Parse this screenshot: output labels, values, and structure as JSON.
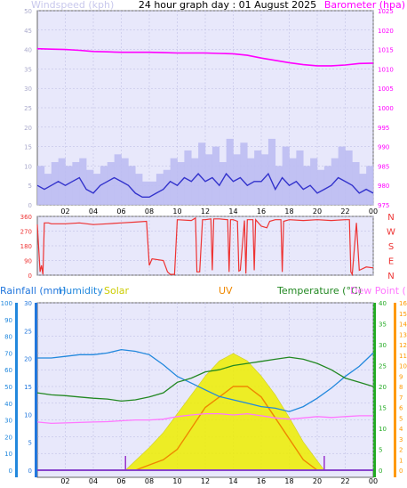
{
  "title": "24 hour graph day : 01 August 2025",
  "colors": {
    "grid": "#b8b8e0",
    "barometer": "#ff00ff",
    "windspeed": "#3333cc",
    "gust": "#bcbcf2",
    "direction": "#ee3333",
    "rain": "#2277dd",
    "humidity": "#2288dd",
    "solar": "#cccc00",
    "uv": "#ee8800",
    "temperature": "#228822",
    "dewpoint": "#ff77ff",
    "green_axis": "#22aa22",
    "orange_axis": "#ff9900"
  },
  "chart_data": [
    {
      "id": "wind-baro",
      "type": "line",
      "left_axis_label": "Windspeed (kph)",
      "right_axis_label": "Barometer (hpa)",
      "x_ticks": [
        "02",
        "04",
        "06",
        "08",
        "10",
        "12",
        "14",
        "16",
        "18",
        "20",
        "22",
        "00"
      ],
      "y_left": {
        "min": 0,
        "max": 50,
        "ticks": [
          "0",
          "5",
          "10",
          "15",
          "20",
          "25",
          "30",
          "35",
          "40",
          "45",
          "50"
        ]
      },
      "y_right": {
        "min": 975,
        "max": 1025,
        "ticks": [
          "975",
          "980",
          "985",
          "990",
          "995",
          "1000",
          "1005",
          "1010",
          "1015",
          "1020",
          "1025"
        ]
      },
      "series": [
        {
          "name": "Barometer",
          "x": [
            0,
            1,
            2,
            3,
            4,
            5,
            6,
            7,
            8,
            9,
            10,
            11,
            12,
            13,
            14,
            15,
            16,
            17,
            18,
            19,
            20,
            21,
            22,
            23,
            24
          ],
          "values": [
            1015.2,
            1015.1,
            1015.0,
            1014.8,
            1014.5,
            1014.4,
            1014.3,
            1014.3,
            1014.3,
            1014.2,
            1014.1,
            1014.1,
            1014.1,
            1014.0,
            1013.9,
            1013.5,
            1012.8,
            1012.2,
            1011.6,
            1011.1,
            1010.8,
            1010.8,
            1011.0,
            1011.4,
            1011.5
          ]
        },
        {
          "name": "Windspeed",
          "x": [
            0,
            0.5,
            1,
            1.5,
            2,
            2.5,
            3,
            3.5,
            4,
            4.5,
            5,
            5.5,
            6,
            6.5,
            7,
            7.5,
            8,
            8.5,
            9,
            9.5,
            10,
            10.5,
            11,
            11.5,
            12,
            12.5,
            13,
            13.5,
            14,
            14.5,
            15,
            15.5,
            16,
            16.5,
            17,
            17.5,
            18,
            18.5,
            19,
            19.5,
            20,
            20.5,
            21,
            21.5,
            22,
            22.5,
            23,
            23.5,
            24
          ],
          "values": [
            5,
            4,
            5,
            6,
            5,
            6,
            7,
            4,
            3,
            5,
            6,
            7,
            6,
            5,
            3,
            2,
            2,
            3,
            4,
            6,
            5,
            7,
            6,
            8,
            6,
            7,
            5,
            8,
            6,
            7,
            5,
            6,
            6,
            8,
            4,
            7,
            5,
            6,
            4,
            5,
            3,
            4,
            5,
            7,
            6,
            5,
            3,
            4,
            3
          ]
        },
        {
          "name": "Gust",
          "x": [
            0,
            0.5,
            1,
            1.5,
            2,
            2.5,
            3,
            3.5,
            4,
            4.5,
            5,
            5.5,
            6,
            6.5,
            7,
            7.5,
            8,
            8.5,
            9,
            9.5,
            10,
            10.5,
            11,
            11.5,
            12,
            12.5,
            13,
            13.5,
            14,
            14.5,
            15,
            15.5,
            16,
            16.5,
            17,
            17.5,
            18,
            18.5,
            19,
            19.5,
            20,
            20.5,
            21,
            21.5,
            22,
            22.5,
            23,
            23.5,
            24
          ],
          "values": [
            10,
            8,
            11,
            12,
            10,
            11,
            12,
            9,
            8,
            10,
            11,
            13,
            12,
            10,
            8,
            6,
            6,
            8,
            9,
            12,
            11,
            14,
            12,
            16,
            13,
            15,
            11,
            17,
            13,
            16,
            12,
            14,
            13,
            17,
            10,
            15,
            12,
            14,
            10,
            12,
            9,
            10,
            12,
            15,
            14,
            11,
            8,
            10,
            9
          ]
        }
      ]
    },
    {
      "id": "direction",
      "type": "line",
      "y_ticks": [
        "0",
        "90",
        "180",
        "270",
        "360"
      ],
      "right_letters": [
        "N",
        "W",
        "S",
        "E",
        "N"
      ],
      "series": [
        {
          "name": "Wind direction",
          "x": [
            0,
            0.2,
            0.3,
            0.4,
            0.5,
            0.8,
            1.0,
            2,
            3,
            4,
            5,
            6,
            7,
            7.8,
            8.0,
            8.2,
            9,
            9.3,
            9.5,
            9.8,
            10,
            11,
            11.3,
            11.4,
            11.6,
            11.8,
            12,
            12.4,
            12.5,
            12.6,
            13,
            13.6,
            13.7,
            13.8,
            14,
            14.3,
            14.4,
            14.5,
            14.8,
            14.9,
            15,
            15.4,
            15.5,
            15.6,
            16,
            16.4,
            16.6,
            17,
            17.4,
            17.5,
            17.6,
            18,
            19,
            20,
            21,
            22,
            22.3,
            22.4,
            22.5,
            22.8,
            23,
            23.5,
            24
          ],
          "values": [
            310,
            20,
            60,
            5,
            320,
            320,
            315,
            315,
            320,
            310,
            315,
            320,
            325,
            330,
            60,
            100,
            90,
            20,
            5,
            5,
            340,
            335,
            350,
            20,
            20,
            340,
            340,
            345,
            30,
            345,
            345,
            340,
            20,
            340,
            340,
            330,
            25,
            30,
            335,
            10,
            340,
            340,
            30,
            340,
            300,
            290,
            330,
            340,
            340,
            20,
            330,
            340,
            335,
            340,
            335,
            340,
            340,
            20,
            5,
            320,
            30,
            50,
            45
          ]
        }
      ]
    },
    {
      "id": "rain-etc",
      "type": "line",
      "legend": [
        "Rainfall (mm)",
        "Humidity",
        "Solar",
        "UV",
        "Temperature (°C)",
        "Dew Point (°C)"
      ],
      "x_ticks": [
        "02",
        "04",
        "06",
        "08",
        "10",
        "12",
        "14",
        "16",
        "18",
        "20",
        "22",
        "00"
      ],
      "humidity_ticks": [
        "0",
        "10",
        "20",
        "30",
        "40",
        "50",
        "60",
        "70",
        "80",
        "90",
        "100"
      ],
      "rain_ticks": [
        "0",
        "5",
        "10",
        "15",
        "20",
        "25",
        "30"
      ],
      "temp_ticks": [
        "0",
        "5",
        "10",
        "15",
        "20",
        "25",
        "30",
        "35",
        "40"
      ],
      "uv_ticks": [
        "0",
        "1",
        "2",
        "3",
        "4",
        "5",
        "6",
        "7",
        "8",
        "9",
        "10",
        "11",
        "12",
        "13",
        "14",
        "15",
        "16"
      ],
      "series": [
        {
          "name": "Temperature",
          "x": [
            0,
            1,
            2,
            3,
            4,
            5,
            6,
            7,
            8,
            9,
            10,
            11,
            12,
            13,
            14,
            15,
            16,
            17,
            18,
            19,
            20,
            21,
            22,
            23,
            24
          ],
          "values": [
            18.5,
            18,
            17.8,
            17.5,
            17.2,
            17,
            16.5,
            16.8,
            17.5,
            18.5,
            21,
            22,
            23.5,
            24,
            25,
            25.5,
            26,
            26.5,
            27,
            26.5,
            25.5,
            24,
            22,
            21,
            20
          ]
        },
        {
          "name": "Humidity",
          "x": [
            0,
            1,
            2,
            3,
            4,
            5,
            6,
            7,
            8,
            9,
            10,
            11,
            12,
            13,
            14,
            15,
            16,
            17,
            18,
            19,
            20,
            21,
            22,
            23,
            24
          ],
          "values": [
            67,
            67,
            68,
            69,
            69,
            70,
            72,
            71,
            69,
            63,
            56,
            52,
            48,
            44,
            42,
            40,
            38,
            37,
            35,
            38,
            43,
            49,
            56,
            62,
            70
          ]
        },
        {
          "name": "Dew Point",
          "x": [
            0,
            1,
            2,
            3,
            4,
            5,
            6,
            7,
            8,
            9,
            10,
            11,
            12,
            13,
            14,
            15,
            16,
            17,
            18,
            19,
            20,
            21,
            22,
            23,
            24
          ],
          "values": [
            11.5,
            11.2,
            11.3,
            11.4,
            11.5,
            11.6,
            11.8,
            12,
            12,
            12.2,
            12.8,
            13.2,
            13.5,
            13.5,
            13.2,
            13.5,
            13.0,
            12.5,
            12.2,
            12.5,
            12.8,
            12.6,
            12.8,
            13,
            13
          ]
        },
        {
          "name": "Solar",
          "x": [
            6.3,
            7,
            8,
            9,
            10,
            11,
            12,
            13,
            14,
            15,
            16,
            17,
            18,
            19,
            20,
            20.5
          ],
          "values": [
            0,
            5,
            12,
            20,
            30,
            40,
            50,
            58,
            62,
            58,
            50,
            40,
            28,
            15,
            5,
            0
          ]
        },
        {
          "name": "UV",
          "x": [
            7,
            8,
            9,
            10,
            11,
            12,
            13,
            14,
            15,
            16,
            17,
            18,
            19,
            20
          ],
          "values": [
            0,
            0.5,
            1,
            2,
            4,
            6,
            7,
            8,
            8,
            7,
            5,
            3,
            1,
            0
          ]
        },
        {
          "name": "Rainfall",
          "x": [
            0,
            24
          ],
          "values": [
            0,
            0
          ]
        }
      ]
    }
  ]
}
